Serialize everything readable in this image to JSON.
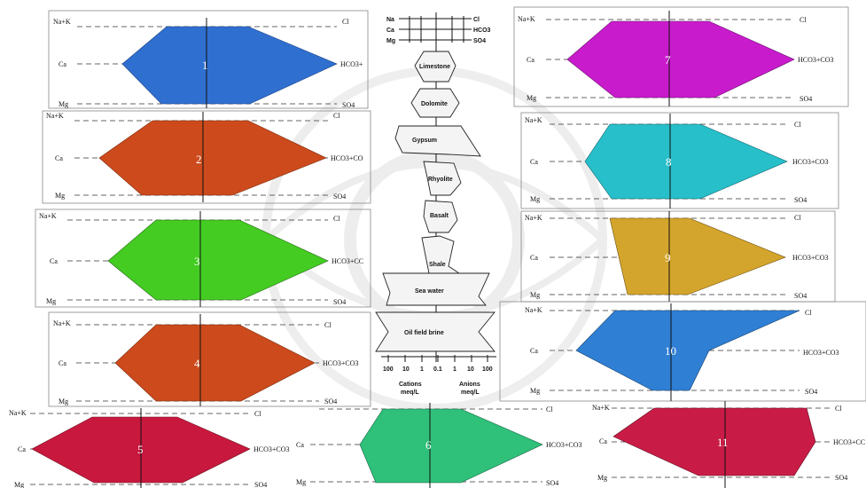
{
  "panel_labels": {
    "na_k": "Na+K",
    "ca": "Ca",
    "mg": "Mg",
    "cl": "Cl",
    "so4": "SO4"
  },
  "diagrams": [
    {
      "id": "1",
      "hco3_label": "HCO3+",
      "color": "#2f6fd0"
    },
    {
      "id": "2",
      "hco3_label": "HCO3+CO",
      "color": "#cc4a1c"
    },
    {
      "id": "3",
      "hco3_label": "HCO3+CC",
      "color": "#44cc22"
    },
    {
      "id": "4",
      "hco3_label": "HCO3+CO3",
      "color": "#cc4a1c"
    },
    {
      "id": "5",
      "hco3_label": "HCO3+CO3",
      "color": "#c8183e"
    },
    {
      "id": "6",
      "hco3_label": "HCO3+CO3",
      "color": "#2fc07a"
    },
    {
      "id": "7",
      "hco3_label": "HCO3+CO3",
      "color": "#c81ccc"
    },
    {
      "id": "8",
      "hco3_label": "HCO3+CO3",
      "color": "#27bfc9"
    },
    {
      "id": "9",
      "hco3_label": "HCO3+CO3",
      "color": "#d4a52c"
    },
    {
      "id": "10",
      "hco3_label": "HCO3+CO3",
      "color": "#2f7fd4"
    },
    {
      "id": "11",
      "hco3_label": "HCO3+CC",
      "color": "#c81c46"
    }
  ],
  "reference": {
    "scale_rows": [
      {
        "cation": "Na",
        "anion": "Cl"
      },
      {
        "cation": "Ca",
        "anion": "HCO3"
      },
      {
        "cation": "Mg",
        "anion": "SO4"
      }
    ],
    "shapes": [
      "Limestone",
      "Dolomite",
      "Gypsum",
      "Rhyolite",
      "Basalt",
      "Shale",
      "Sea water",
      "Oil field brine"
    ],
    "axis_ticks": [
      "100",
      "10",
      "1",
      "0.1",
      "1",
      "10",
      "100"
    ],
    "cations_label": "Cations",
    "anions_label": "Anions",
    "unit_label": "meq/L"
  }
}
